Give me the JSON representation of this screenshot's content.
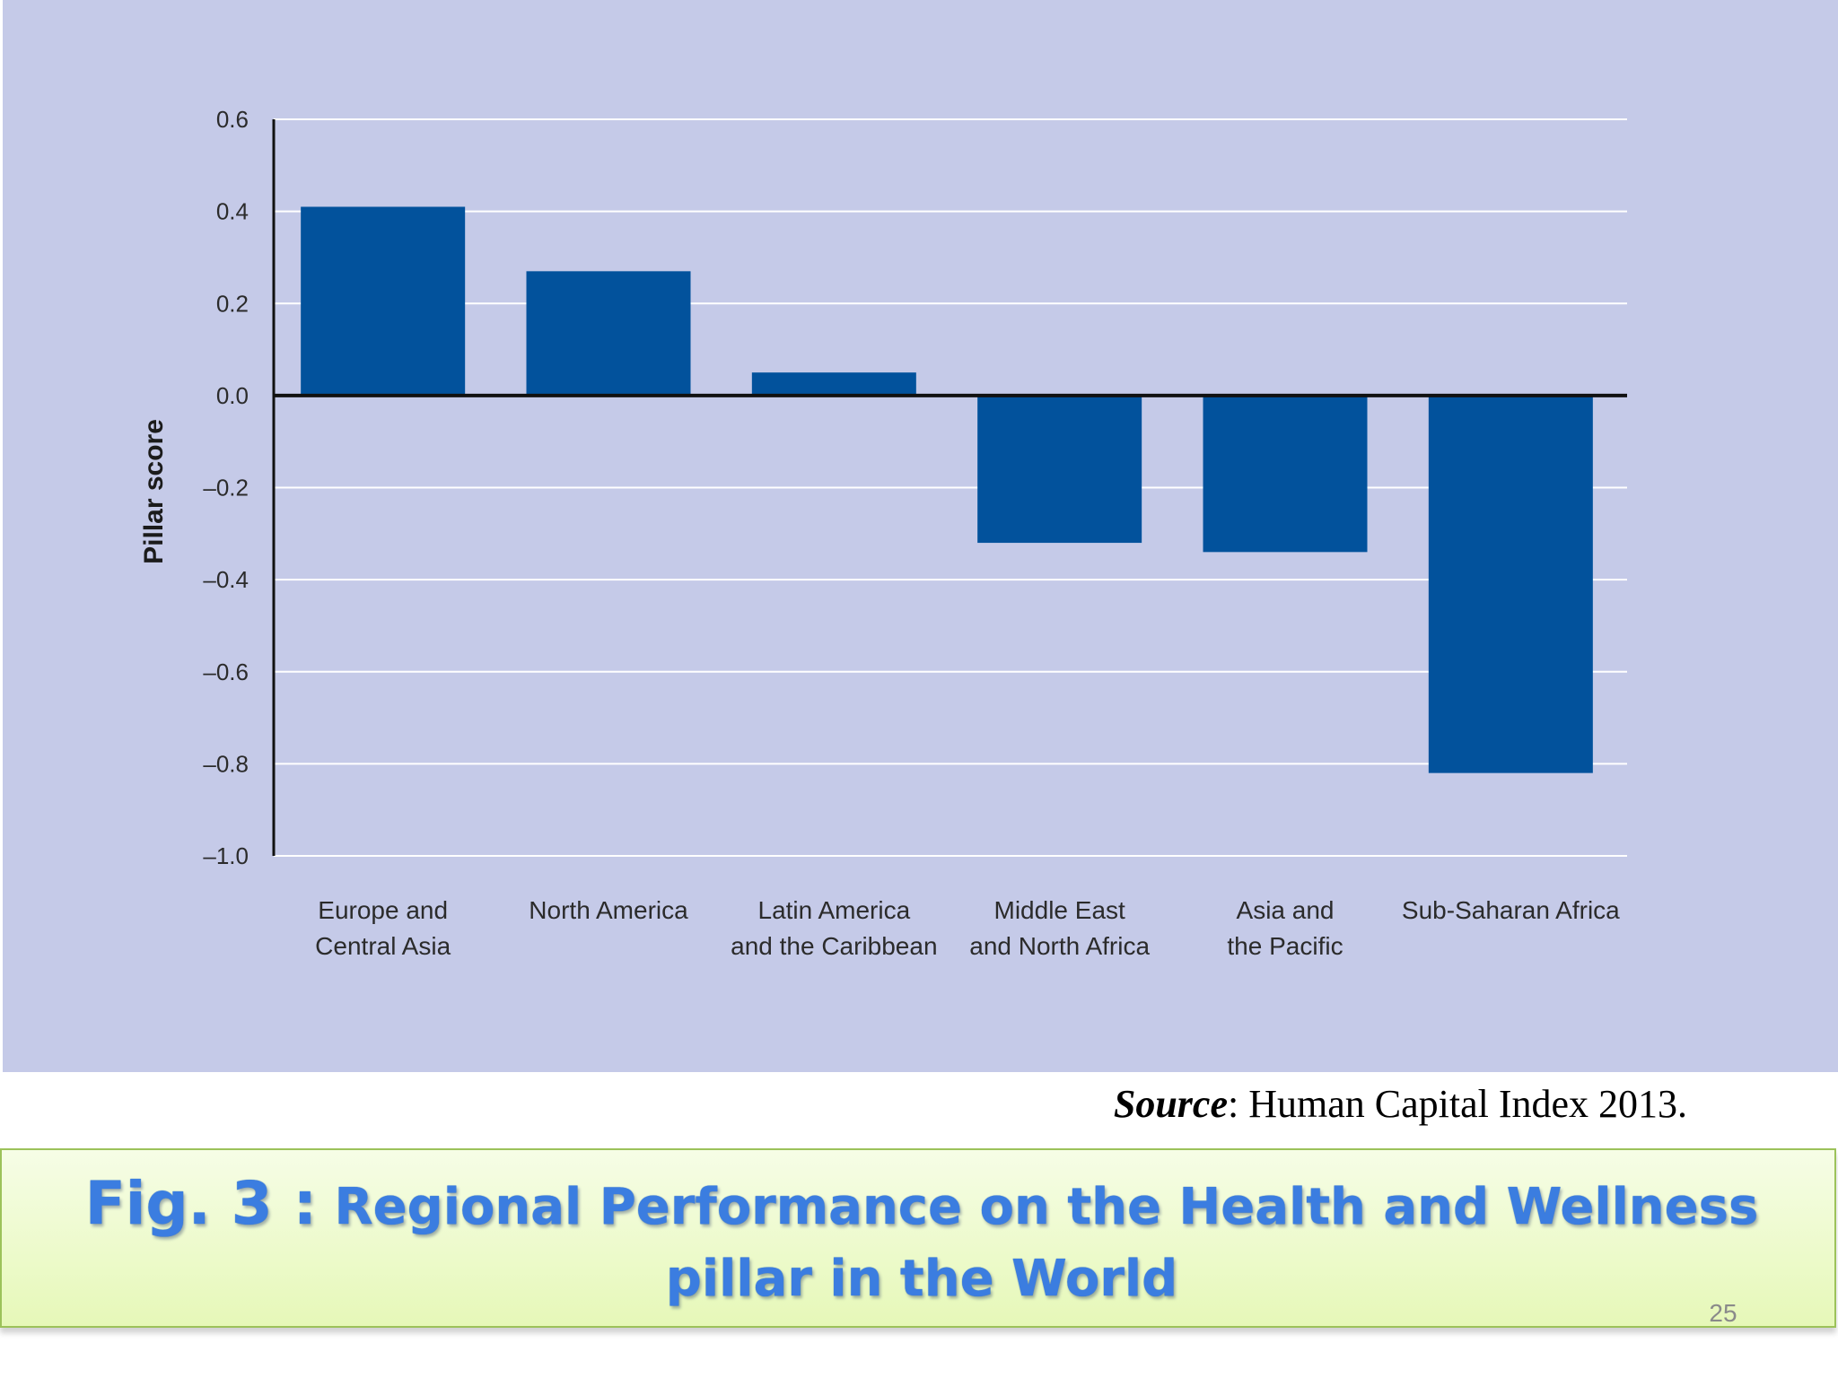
{
  "chart_data": {
    "type": "bar",
    "categories": [
      [
        "Europe and",
        "Central Asia"
      ],
      [
        "North America"
      ],
      [
        "Latin America",
        "and the Caribbean"
      ],
      [
        "Middle East",
        "and North Africa"
      ],
      [
        "Asia and",
        "the Pacific"
      ],
      [
        "Sub-Saharan Africa"
      ]
    ],
    "values": [
      0.41,
      0.27,
      0.05,
      -0.32,
      -0.34,
      -0.82
    ],
    "ylabel": "Pillar score",
    "xlabel": "",
    "ylim": [
      -1.0,
      0.6
    ],
    "yticks": [
      "0.6",
      "0.4",
      "0.2",
      "0.0",
      "–0.2",
      "–0.4",
      "–0.6",
      "–0.8",
      "–1.0"
    ],
    "ytick_values": [
      0.6,
      0.4,
      0.2,
      0.0,
      -0.2,
      -0.4,
      -0.6,
      -0.8,
      -1.0
    ],
    "grid": true,
    "bar_color": "#02529c",
    "background_color": "#c5cae8"
  },
  "source": {
    "label": "Source",
    "text": ": Human Capital Index 2013."
  },
  "caption": {
    "fig_number": "Fig. 3 :",
    "title": "Regional Performance on the Health and Wellness pillar in the World"
  },
  "page_number": "25"
}
